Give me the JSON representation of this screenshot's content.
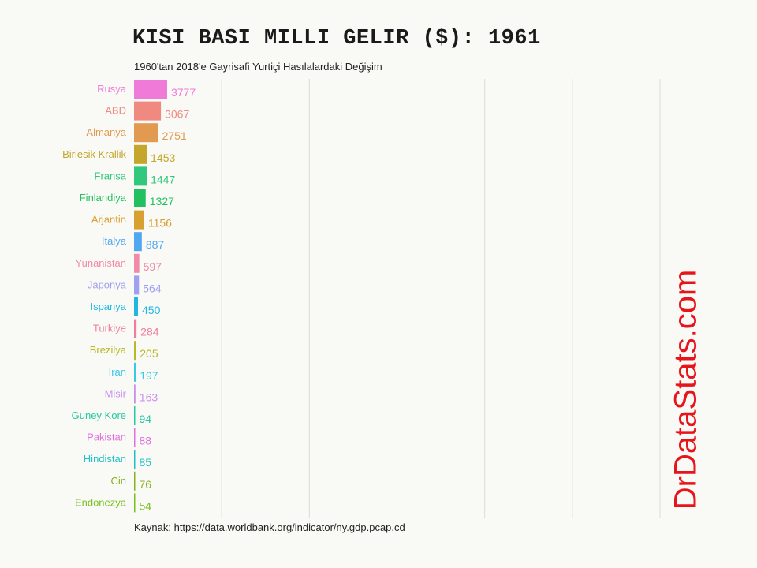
{
  "title": "KISI BASI MILLI GELIR ($): 1961",
  "subtitle": "1960'tan 2018'e Gayrisafi Yurtiçi Hasılalardaki Değişim",
  "source": "Kaynak: https://data.worldbank.org/indicator/ny.gdp.pcap.cd",
  "watermark": "DrDataStats.com",
  "chart_data": {
    "type": "bar",
    "orientation": "horizontal",
    "title": "KISI BASI MILLI GELIR ($): 1961",
    "subtitle": "1960'tan 2018'e Gayrisafi Yurtiçi Hasılalardaki Değişim",
    "xlim": [
      0,
      60000
    ],
    "grid": true,
    "legend": "none",
    "categories": [
      "Rusya",
      "ABD",
      "Almanya",
      "Birlesik Krallik",
      "Fransa",
      "Finlandiya",
      "Arjantin",
      "Italya",
      "Yunanistan",
      "Japonya",
      "Ispanya",
      "Turkiye",
      "Brezilya",
      "Iran",
      "Misir",
      "Guney Kore",
      "Pakistan",
      "Hindistan",
      "Cin",
      "Endonezya"
    ],
    "values": [
      3777,
      3067,
      2751,
      1453,
      1447,
      1327,
      1156,
      887,
      597,
      564,
      450,
      284,
      205,
      197,
      163,
      94,
      88,
      85,
      76,
      54
    ],
    "colors": [
      "#f07ad8",
      "#f08a80",
      "#e19a50",
      "#c4a62a",
      "#30c87c",
      "#22c060",
      "#d8a030",
      "#52a8f0",
      "#f08aa8",
      "#a0a0f0",
      "#20b8e0",
      "#f07ca0",
      "#b8b828",
      "#38c8e8",
      "#c890f0",
      "#28c8a0",
      "#e070e0",
      "#20c0c8",
      "#88b020",
      "#7cc020"
    ]
  }
}
